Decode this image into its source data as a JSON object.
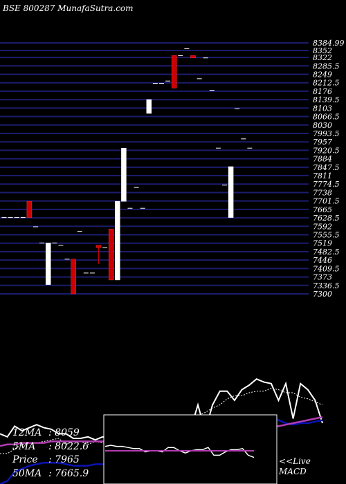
{
  "header": {
    "title": "BSE 800287 MunafaSutra.com"
  },
  "colors": {
    "background": "#000000",
    "grid": "#1c1c6e",
    "up_candle": "#ffffff",
    "down_candle": "#cc0000",
    "ma_slow": "#0a14b4",
    "ma_long": "#b43cb4",
    "macd_line": "#ffffff"
  },
  "chart_data": [
    {
      "type": "candlestick",
      "title": "BSE 800287 MunafaSutra.com",
      "ylim": [
        7300,
        8384.99
      ],
      "y_ticks": [
        "8384.99",
        "8352",
        "8322",
        "8285.5",
        "8249",
        "8212.5",
        "8176",
        "8139.5",
        "8103",
        "8066.5",
        "8030",
        "7993.5",
        "7957",
        "7920.5",
        "7884",
        "7847.5",
        "7811",
        "7774.5",
        "7738",
        "7701.5",
        "7665",
        "7628.5",
        "7592",
        "7555.5",
        "7519",
        "7482.5",
        "7446",
        "7409.5",
        "7373",
        "7336.5",
        "7300"
      ],
      "candles": [
        {
          "o": 7630,
          "h": 7630,
          "l": 7630,
          "c": 7630
        },
        {
          "o": 7630,
          "h": 7630,
          "l": 7630,
          "c": 7630
        },
        {
          "o": 7630,
          "h": 7630,
          "l": 7630,
          "c": 7630
        },
        {
          "o": 7630,
          "h": 7630,
          "l": 7630,
          "c": 7630
        },
        {
          "o": 7700,
          "h": 7700,
          "l": 7630,
          "c": 7630
        },
        {
          "o": 7590,
          "h": 7590,
          "l": 7590,
          "c": 7590
        },
        {
          "o": 7520,
          "h": 7520,
          "l": 7520,
          "c": 7520
        },
        {
          "o": 7340,
          "h": 7520,
          "l": 7340,
          "c": 7520
        },
        {
          "o": 7520,
          "h": 7520,
          "l": 7520,
          "c": 7520
        },
        {
          "o": 7510,
          "h": 7510,
          "l": 7510,
          "c": 7510
        },
        {
          "o": 7450,
          "h": 7450,
          "l": 7450,
          "c": 7450
        },
        {
          "o": 7450,
          "h": 7450,
          "l": 7300,
          "c": 7300
        },
        {
          "o": 7570,
          "h": 7570,
          "l": 7570,
          "c": 7570
        },
        {
          "o": 7390,
          "h": 7390,
          "l": 7390,
          "c": 7390
        },
        {
          "o": 7390,
          "h": 7390,
          "l": 7390,
          "c": 7390
        },
        {
          "o": 7510,
          "h": 7510,
          "l": 7430,
          "c": 7500
        },
        {
          "o": 7500,
          "h": 7500,
          "l": 7500,
          "c": 7500
        },
        {
          "o": 7580,
          "h": 7580,
          "l": 7360,
          "c": 7360
        },
        {
          "o": 7360,
          "h": 7700,
          "l": 7360,
          "c": 7700
        },
        {
          "o": 7700,
          "h": 7930,
          "l": 7700,
          "c": 7930
        },
        {
          "o": 7670,
          "h": 7670,
          "l": 7670,
          "c": 7670
        },
        {
          "o": 7760,
          "h": 7760,
          "l": 7760,
          "c": 7760
        },
        {
          "o": 7670,
          "h": 7670,
          "l": 7670,
          "c": 7670
        },
        {
          "o": 8080,
          "h": 8140,
          "l": 8080,
          "c": 8140
        },
        {
          "o": 8210,
          "h": 8210,
          "l": 8210,
          "c": 8210
        },
        {
          "o": 8210,
          "h": 8210,
          "l": 8210,
          "c": 8210
        },
        {
          "o": 8220,
          "h": 8220,
          "l": 8220,
          "c": 8220
        },
        {
          "o": 8330,
          "h": 8330,
          "l": 8190,
          "c": 8190
        },
        {
          "o": 8330,
          "h": 8330,
          "l": 8330,
          "c": 8330
        },
        {
          "o": 8360,
          "h": 8360,
          "l": 8360,
          "c": 8360
        },
        {
          "o": 8330,
          "h": 8330,
          "l": 8320,
          "c": 8320
        },
        {
          "o": 8230,
          "h": 8230,
          "l": 8230,
          "c": 8230
        },
        {
          "o": 8320,
          "h": 8320,
          "l": 8320,
          "c": 8320
        },
        {
          "o": 8180,
          "h": 8180,
          "l": 8180,
          "c": 8180
        },
        {
          "o": 7930,
          "h": 7930,
          "l": 7930,
          "c": 7930
        },
        {
          "o": 7770,
          "h": 7770,
          "l": 7770,
          "c": 7770
        },
        {
          "o": 7630,
          "h": 7850,
          "l": 7630,
          "c": 7850
        },
        {
          "o": 8100,
          "h": 8100,
          "l": 8100,
          "c": 8100
        },
        {
          "o": 7970,
          "h": 7970,
          "l": 7970,
          "c": 7970
        },
        {
          "o": 7930,
          "h": 7930,
          "l": 7930,
          "c": 7930
        }
      ]
    },
    {
      "type": "line",
      "title": "",
      "ylim": [
        0,
        100
      ],
      "series": [
        {
          "values": [
            33,
            31,
            38,
            35,
            37,
            39,
            37,
            36,
            33,
            33,
            30,
            30,
            31,
            29,
            31,
            30,
            30,
            30,
            29,
            29,
            33,
            35,
            44,
            38,
            45,
            43,
            36,
            52,
            35,
            52,
            61,
            61,
            55,
            62,
            65,
            69,
            67,
            66,
            55,
            66,
            43,
            66,
            62,
            55,
            40
          ]
        },
        {
          "values": [
            20,
            20,
            23,
            26,
            27,
            27,
            28,
            29,
            30,
            26,
            28,
            28,
            26,
            28,
            27,
            26,
            27,
            27,
            28,
            30,
            32,
            35,
            36,
            39,
            41,
            44,
            45,
            45,
            47,
            50,
            52,
            56,
            58,
            58,
            60,
            61,
            61,
            63,
            62,
            60,
            60,
            57,
            56,
            54,
            52
          ]
        },
        {
          "values": [
            0,
            2,
            8,
            10,
            12,
            13,
            14,
            14,
            14,
            13,
            12,
            12,
            12,
            13,
            13,
            12,
            12,
            11,
            11,
            11,
            11,
            13,
            14,
            17,
            18,
            21,
            23,
            24,
            26,
            28,
            31,
            35,
            38,
            41,
            42,
            45,
            45,
            44,
            42,
            40,
            39,
            40,
            40,
            41,
            42
          ]
        },
        {
          "values": [
            25,
            26,
            26,
            27,
            27,
            27,
            27,
            28,
            28,
            28,
            28,
            28,
            28,
            28,
            28,
            28,
            28,
            28,
            28,
            28,
            28,
            29,
            29,
            30,
            31,
            31,
            32,
            32,
            33,
            33,
            33,
            34,
            34,
            35,
            35,
            36,
            36,
            37,
            38,
            39,
            40,
            41,
            42,
            43,
            44
          ]
        }
      ]
    },
    {
      "type": "line",
      "title": "MACD",
      "ylim": [
        -10,
        10
      ],
      "series": [
        {
          "values": [
            4,
            5,
            4,
            4,
            3,
            2,
            2,
            -1,
            0,
            0,
            -1,
            3,
            3,
            0,
            -2,
            0,
            1,
            1,
            3,
            -4,
            -4,
            -1,
            1,
            1,
            2,
            -4,
            -6
          ]
        },
        {
          "values": [
            0,
            0,
            0,
            0,
            0,
            0,
            0,
            0,
            0,
            0,
            0,
            0,
            0,
            0,
            0,
            0,
            0,
            0,
            0,
            0,
            0,
            0,
            0,
            0,
            0,
            0,
            0
          ]
        }
      ]
    }
  ],
  "legend": {
    "rows": [
      {
        "key": "12MA",
        "sep": ":",
        "value": "8059"
      },
      {
        "key": "5MA",
        "sep": ":",
        "value": "8022.6"
      },
      {
        "key": "Price",
        "sep": ":",
        "value": "7965"
      },
      {
        "key": "50MA",
        "sep": ":",
        "value": "7665.9"
      }
    ]
  },
  "macd_label": {
    "line1": "<<Live",
    "line2": "MACD"
  }
}
